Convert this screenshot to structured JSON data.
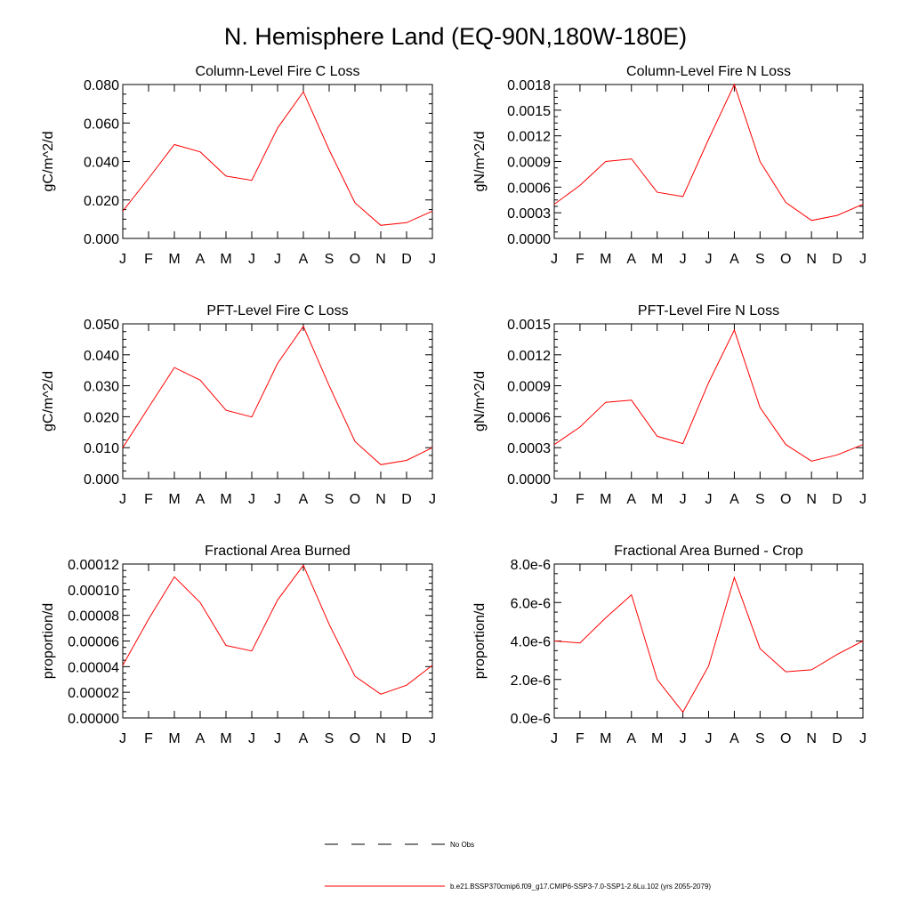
{
  "page_title": "N. Hemisphere Land (EQ-90N,180W-180E)",
  "colors": {
    "series": "#ff0000",
    "obs": "#000000"
  },
  "chart_data": [
    {
      "type": "line",
      "title": "Column-Level Fire C Loss",
      "ylabel": "gC/m^2/d",
      "categories": [
        "J",
        "F",
        "M",
        "A",
        "M",
        "J",
        "J",
        "A",
        "S",
        "O",
        "N",
        "D",
        "J"
      ],
      "ylim": [
        0,
        0.08
      ],
      "yticks": [
        "0.000",
        "0.020",
        "0.040",
        "0.060",
        "0.080"
      ],
      "series": [
        {
          "values": [
            0.0142,
            0.0312,
            0.0488,
            0.045,
            0.0324,
            0.0302,
            0.0574,
            0.0762,
            0.046,
            0.0185,
            0.0068,
            0.0082,
            0.0142
          ]
        }
      ]
    },
    {
      "type": "line",
      "title": "Column-Level Fire N Loss",
      "ylabel": "gN/m^2/d",
      "categories": [
        "J",
        "F",
        "M",
        "A",
        "M",
        "J",
        "J",
        "A",
        "S",
        "O",
        "N",
        "D",
        "J"
      ],
      "ylim": [
        0,
        0.0018
      ],
      "yticks": [
        "0.0000",
        "0.0003",
        "0.0006",
        "0.0009",
        "0.0012",
        "0.0015",
        "0.0018"
      ],
      "series": [
        {
          "values": [
            0.0004,
            0.00062,
            0.0009,
            0.00093,
            0.00054,
            0.00049,
            0.00116,
            0.0018,
            0.0009,
            0.00042,
            0.00021,
            0.00027,
            0.0004
          ]
        }
      ]
    },
    {
      "type": "line",
      "title": "PFT-Level Fire C Loss",
      "ylabel": "gC/m^2/d",
      "categories": [
        "J",
        "F",
        "M",
        "A",
        "M",
        "J",
        "J",
        "A",
        "S",
        "O",
        "N",
        "D",
        "J"
      ],
      "ylim": [
        0,
        0.05
      ],
      "yticks": [
        "0.000",
        "0.010",
        "0.020",
        "0.030",
        "0.040",
        "0.050"
      ],
      "series": [
        {
          "values": [
            0.01,
            0.023,
            0.0359,
            0.0318,
            0.0221,
            0.0199,
            0.0372,
            0.0492,
            0.03,
            0.012,
            0.0045,
            0.0059,
            0.01
          ]
        }
      ]
    },
    {
      "type": "line",
      "title": "PFT-Level Fire N Loss",
      "ylabel": "gN/m^2/d",
      "categories": [
        "J",
        "F",
        "M",
        "A",
        "M",
        "J",
        "J",
        "A",
        "S",
        "O",
        "N",
        "D",
        "J"
      ],
      "ylim": [
        0,
        0.0015
      ],
      "yticks": [
        "0.0000",
        "0.0003",
        "0.0006",
        "0.0009",
        "0.0012",
        "0.0015"
      ],
      "series": [
        {
          "values": [
            0.00033,
            0.0005,
            0.00074,
            0.00076,
            0.00041,
            0.00034,
            0.00093,
            0.00144,
            0.00069,
            0.00033,
            0.00017,
            0.00023,
            0.00033
          ]
        }
      ]
    },
    {
      "type": "line",
      "title": "Fractional Area Burned",
      "ylabel": "proportion/d",
      "categories": [
        "J",
        "F",
        "M",
        "A",
        "M",
        "J",
        "J",
        "A",
        "S",
        "O",
        "N",
        "D",
        "J"
      ],
      "ylim": [
        0,
        0.00012
      ],
      "yticks": [
        "0.00000",
        "0.00002",
        "0.00004",
        "0.00006",
        "0.00008",
        "0.00010",
        "0.00012"
      ],
      "series": [
        {
          "values": [
            4.1e-05,
            7.7e-05,
            0.00011,
            9e-05,
            5.65e-05,
            5.22e-05,
            9.2e-05,
            0.000119,
            7.3e-05,
            3.25e-05,
            1.85e-05,
            2.55e-05,
            4.1e-05
          ]
        }
      ]
    },
    {
      "type": "line",
      "title": "Fractional Area Burned - Crop",
      "ylabel": "proportion/d",
      "categories": [
        "J",
        "F",
        "M",
        "A",
        "M",
        "J",
        "J",
        "A",
        "S",
        "O",
        "N",
        "D",
        "J"
      ],
      "ylim": [
        0,
        8e-06
      ],
      "yticks": [
        "0.0e-6",
        "2.0e-6",
        "4.0e-6",
        "6.0e-6",
        "8.0e-6"
      ],
      "series": [
        {
          "values": [
            4e-06,
            3.9e-06,
            5.2e-06,
            6.4e-06,
            2e-06,
            3e-07,
            2.7e-06,
            7.3e-06,
            3.6e-06,
            2.4e-06,
            2.5e-06,
            3.3e-06,
            4e-06
          ]
        }
      ]
    }
  ],
  "legend": [
    {
      "label": "No Obs",
      "style": "dashed"
    },
    {
      "label": "b.e21.BSSP370cmip6.f09_g17.CMIP6-SSP3-7.0-SSP1-2.6Lu.102 (yrs 2055-2079)",
      "style": "solid"
    }
  ]
}
